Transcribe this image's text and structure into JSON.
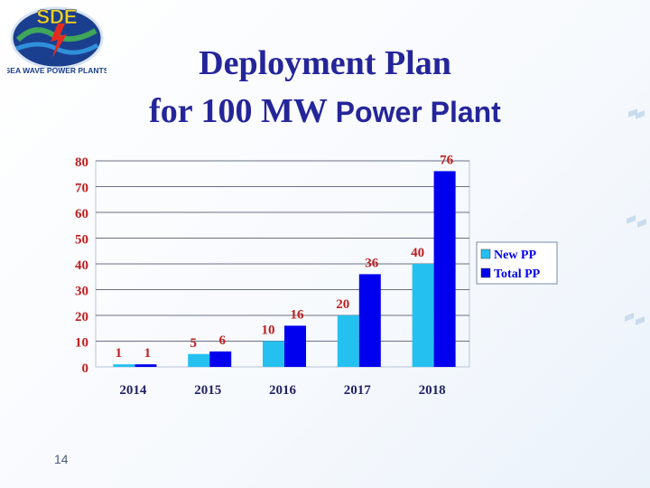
{
  "logo": {
    "text": "SDE",
    "subtitle": "SEA WAVE POWER PLANTS"
  },
  "title": {
    "line1": "Deployment Plan",
    "line2_serif": "for 100 MW",
    "line2_sans": "Power Plant"
  },
  "page_number": "14",
  "colors": {
    "title": "#25259a",
    "new_pp": "#24c1f0",
    "total_pp": "#0000ee",
    "labels": "#bf1e1e",
    "axis": "#222266"
  },
  "chart_data": {
    "type": "bar",
    "categories": [
      "2014",
      "2015",
      "2016",
      "2017",
      "2018"
    ],
    "series": [
      {
        "name": "New PP",
        "values": [
          1,
          5,
          10,
          20,
          40
        ]
      },
      {
        "name": "Total PP",
        "values": [
          1,
          6,
          16,
          36,
          76
        ]
      }
    ],
    "yticks": [
      0,
      10,
      20,
      30,
      40,
      50,
      60,
      70,
      80
    ],
    "ylim": [
      0,
      80
    ],
    "gridlines": true,
    "legend": "right",
    "title": "",
    "xlabel": "",
    "ylabel": ""
  }
}
